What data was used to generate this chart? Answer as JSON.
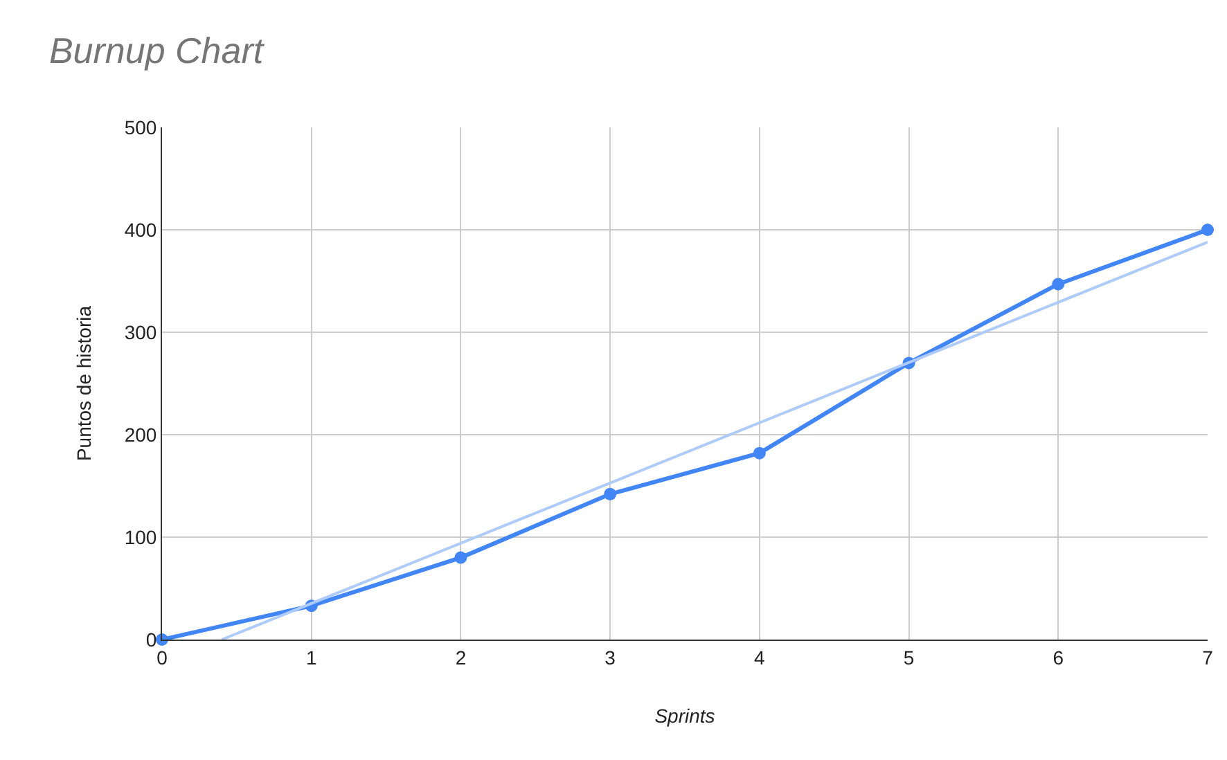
{
  "chart_data": {
    "type": "line",
    "title": "Burnup Chart",
    "xlabel": "Sprints",
    "ylabel": "Puntos de historia",
    "x": [
      0,
      1,
      2,
      3,
      4,
      5,
      6,
      7
    ],
    "series": [
      {
        "color": "#4285f4",
        "values": [
          0,
          33,
          80,
          142,
          182,
          270,
          347,
          400
        ],
        "marker": "circle"
      },
      {
        "color": "#aecbfa",
        "x": [
          0.4,
          7
        ],
        "values": [
          0,
          388
        ],
        "marker": "none"
      }
    ],
    "xlim": [
      0,
      7
    ],
    "xticks": [
      0,
      1,
      2,
      3,
      4,
      5,
      6,
      7
    ],
    "ylim": [
      0,
      500
    ],
    "yticks": [
      0,
      100,
      200,
      300,
      400,
      500
    ],
    "grid": true,
    "line_style": "solid"
  }
}
